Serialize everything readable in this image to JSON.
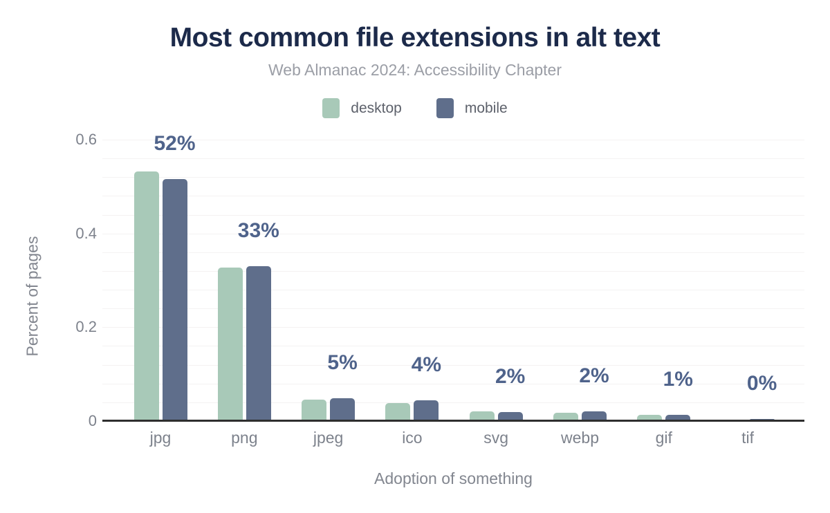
{
  "chart_data": {
    "type": "bar",
    "title": "Most common file extensions in alt text",
    "subtitle": "Web Almanac 2024: Accessibility Chapter",
    "xlabel": "Adoption of something",
    "ylabel": "Percent of pages",
    "categories": [
      "jpg",
      "png",
      "jpeg",
      "ico",
      "svg",
      "webp",
      "gif",
      "tif"
    ],
    "series": [
      {
        "name": "desktop",
        "color": "#a8c9b8",
        "values": [
          0.532,
          0.327,
          0.046,
          0.038,
          0.02,
          0.017,
          0.014,
          0.001
        ]
      },
      {
        "name": "mobile",
        "color": "#5f6e8b",
        "values": [
          0.516,
          0.33,
          0.049,
          0.044,
          0.019,
          0.021,
          0.014,
          0.005
        ]
      }
    ],
    "bar_labels": [
      "52%",
      "33%",
      "5%",
      "4%",
      "2%",
      "2%",
      "1%",
      "0%"
    ],
    "ylim": [
      0,
      0.6
    ],
    "yticks": [
      0,
      0.2,
      0.4,
      0.6
    ],
    "ytick_labels": [
      "0",
      "0.2",
      "0.4",
      "0.6"
    ],
    "grid": true,
    "grid_step": 0.04,
    "legend_position": "top"
  },
  "colors": {
    "background": "#ffffff",
    "title_text": "#1c2a4a",
    "subtitle_text": "#9b9ea6",
    "axis_text": "#7d828c",
    "value_label_text": "#4f638b",
    "legend_text": "#5d616b",
    "axis_line": "#2e2e2e",
    "gridline": "#f4f2f2",
    "desktop_bar": "#a8c9b8",
    "mobile_bar": "#5f6e8b"
  }
}
